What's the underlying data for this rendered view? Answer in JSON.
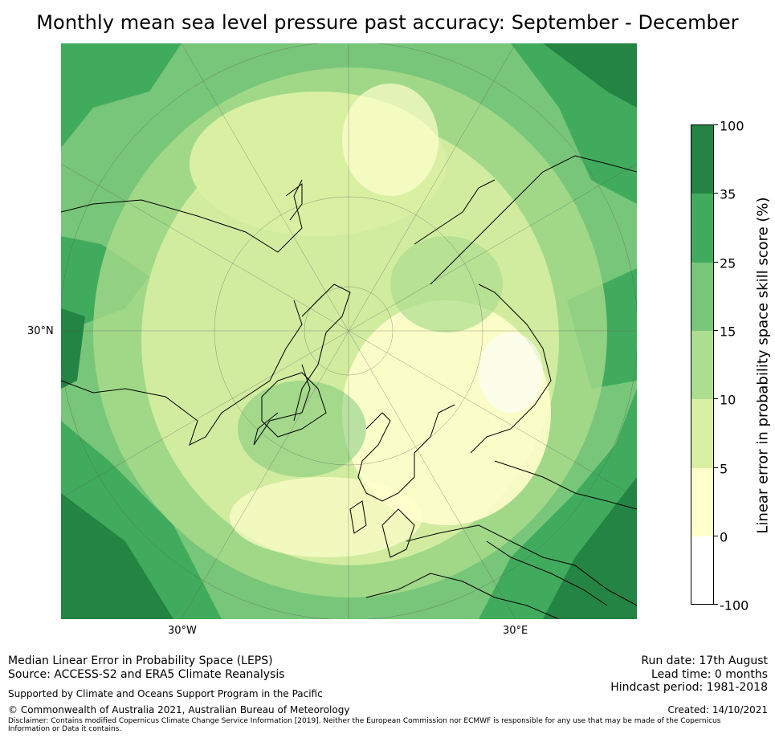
{
  "title": "Monthly mean sea level pressure past accuracy: September - December",
  "map": {
    "axis_labels": {
      "lat_left": "30°N",
      "lon_west": "30°W",
      "lon_east": "30°E"
    },
    "colors": {
      "lightest": "#ffffcc",
      "light": "#d9f0a3",
      "mid_light": "#addd8e",
      "mid": "#78c679",
      "dark": "#41ab5d",
      "darkest": "#238443",
      "coast": "#000000"
    }
  },
  "colorbar": {
    "label": "Linear error in probability space skill score (%)",
    "ticks": [
      "100",
      "35",
      "25",
      "15",
      "10",
      "5",
      "0",
      "-100"
    ],
    "segment_colors": [
      "#238443",
      "#41ab5d",
      "#78c679",
      "#addd8e",
      "#d9f0a3",
      "#ffffcc",
      "#ffffff"
    ]
  },
  "footer": {
    "method": "Median Linear Error in Probability Space (LEPS)",
    "source": "Source: ACCESS-S2 and ERA5 Climate Reanalysis",
    "support": "Supported by Climate and Oceans Support Program in the Pacific",
    "copyright": "© Commonwealth of Australia 2021, Australian Bureau of Meteorology",
    "disclaimer": "Disclaimer: Contains modified Copernicus Climate Change Service Information [2019]. Neither the European Commission nor ECMWF is responsible for any use that may be made of the Copernicus Information or Data it contains.",
    "run_date": "Run date: 17th August",
    "lead_time": "Lead time: 0 months",
    "hindcast": "Hindcast period: 1981-2018",
    "created": "Created: 14/10/2021"
  }
}
